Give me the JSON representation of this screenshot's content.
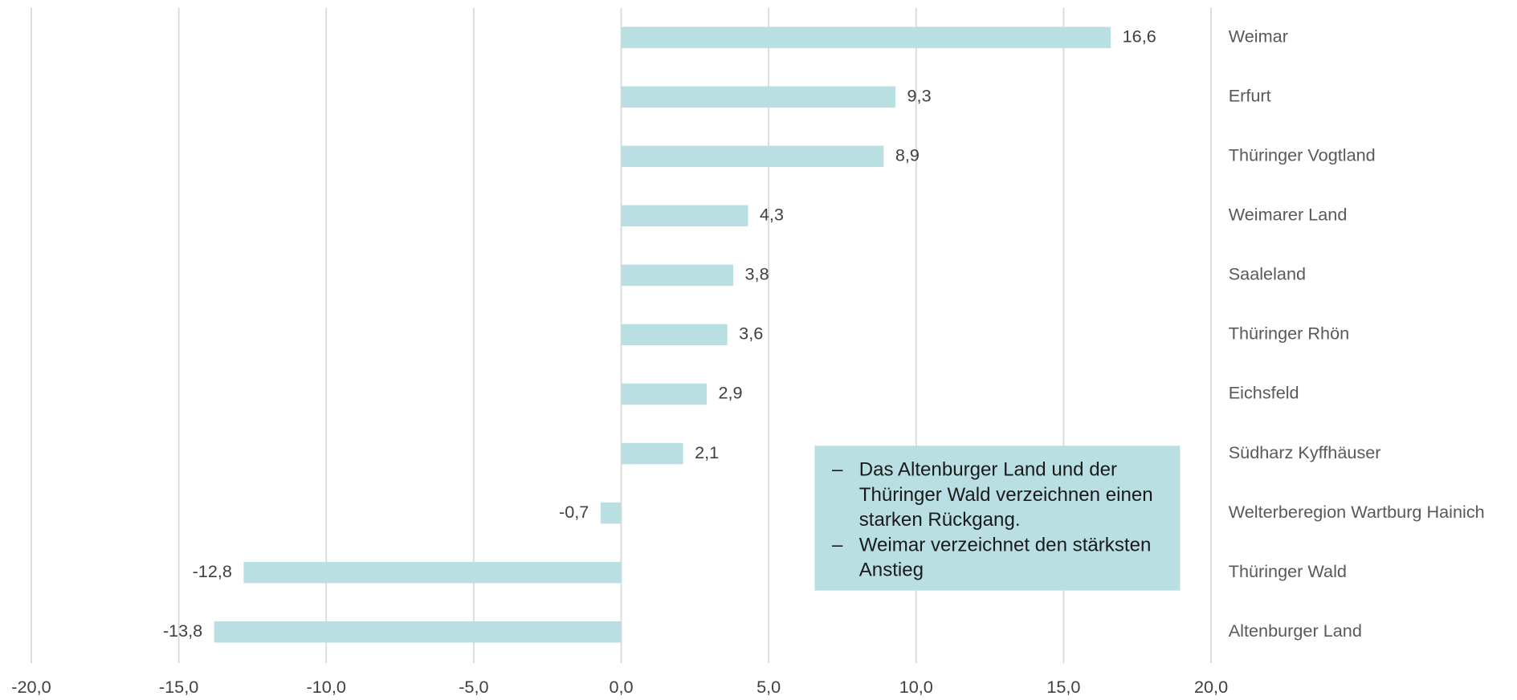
{
  "chart_data": {
    "type": "bar",
    "orientation": "horizontal",
    "categories": [
      "Weimar",
      "Erfurt",
      "Thüringer Vogtland",
      "Weimarer Land",
      "Saaleland",
      "Thüringer Rhön",
      "Eichsfeld",
      "Südharz Kyffhäuser",
      "Welterberegion Wartburg Hainich",
      "Thüringer Wald",
      "Altenburger Land"
    ],
    "values": [
      16.6,
      9.3,
      8.9,
      4.3,
      3.8,
      3.6,
      2.9,
      2.1,
      -0.7,
      -12.8,
      -13.8
    ],
    "value_labels": [
      "16,6",
      "9,3",
      "8,9",
      "4,3",
      "3,8",
      "3,6",
      "2,9",
      "2,1",
      "-0,7",
      "-12,8",
      "-13,8"
    ],
    "color": "#b9dfe2",
    "xlim": [
      -20,
      20
    ],
    "xticks": [
      {
        "value": -20,
        "label": "-20,0"
      },
      {
        "value": -15,
        "label": "-15,0"
      },
      {
        "value": -10,
        "label": "-10,0"
      },
      {
        "value": -5,
        "label": "-5,0"
      },
      {
        "value": 0,
        "label": "0,0"
      },
      {
        "value": 5,
        "label": "5,0"
      },
      {
        "value": 10,
        "label": "10,0"
      },
      {
        "value": 15,
        "label": "15,0"
      },
      {
        "value": 20,
        "label": "20,0"
      }
    ],
    "grid": true,
    "annotations": [
      "Das Altenburger Land und der Thüringer Wald verzeichnen einen starken Rückgang.",
      "Weimar verzeichnet den stärksten Anstieg"
    ]
  }
}
